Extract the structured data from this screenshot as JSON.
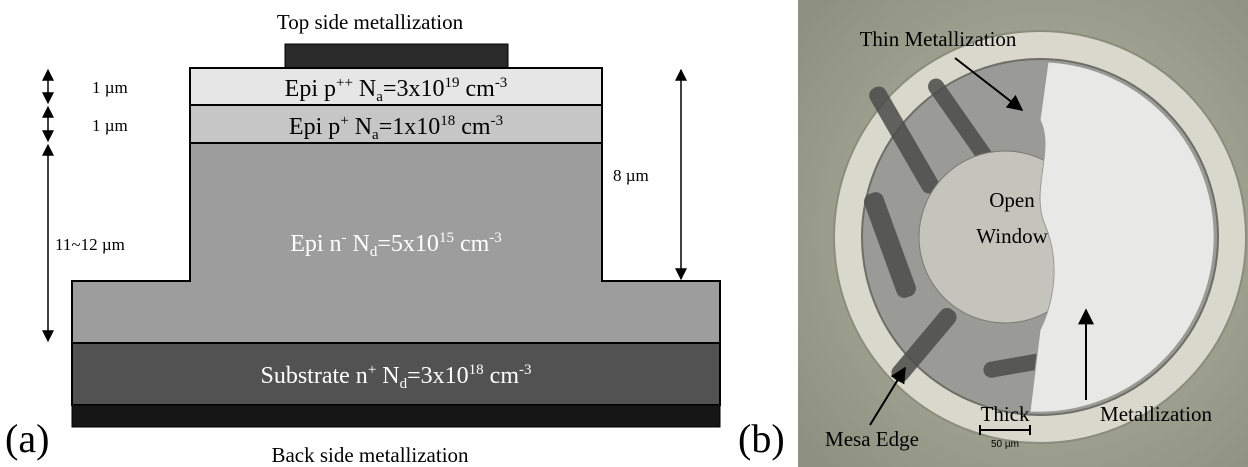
{
  "panel_a": {
    "label": "(a)",
    "top_label": "Top side metallization",
    "bottom_label": "Back side metallization",
    "layers": [
      [
        "Epi p",
        "++",
        " N",
        "a",
        "=3x10",
        "19",
        " cm",
        "-3"
      ],
      [
        "Epi p",
        "+",
        " N",
        "a",
        "=1x10",
        "18",
        " cm",
        "-3"
      ],
      [
        "Epi n",
        "-",
        " N",
        "d",
        "=5x10",
        "15",
        " cm",
        "-3"
      ],
      [
        "Substrate n",
        "+",
        " N",
        "d",
        "=3x10",
        "18",
        " cm",
        "-3"
      ]
    ],
    "dimensions": {
      "p_plus_plus": "1 µm",
      "p_plus": "1 µm",
      "epi": "11~12 µm",
      "mesa": "8 µm"
    }
  },
  "panel_b": {
    "label": "(b)",
    "thin": "Thin Metallization",
    "open_window": [
      "Open",
      "Window"
    ],
    "mesa_edge": "Mesa Edge",
    "thick": [
      "Thick",
      "Metallization"
    ],
    "scale": "50 µm"
  }
}
